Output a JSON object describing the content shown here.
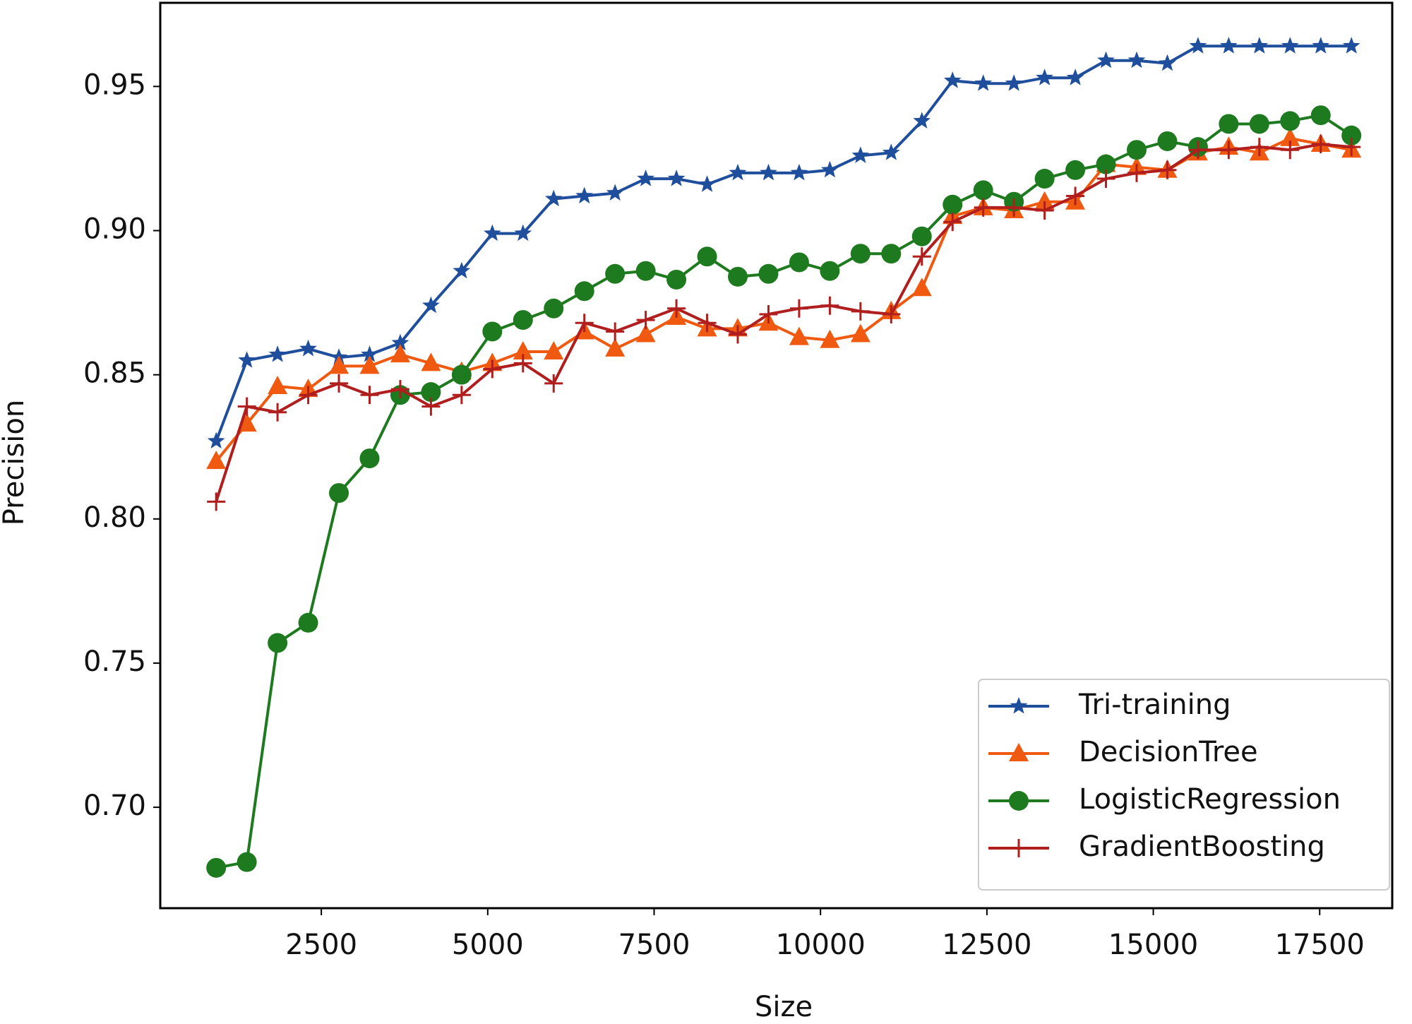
{
  "chart_data": {
    "type": "line",
    "x_label": "Size",
    "y_label": "Precision",
    "x": [
      920,
      1381,
      1842,
      2303,
      2764,
      3225,
      3686,
      4147,
      4608,
      5069,
      5530,
      5991,
      6452,
      6913,
      7374,
      7835,
      8296,
      8757,
      9218,
      9679,
      10140,
      10601,
      11062,
      11523,
      11984,
      12445,
      12906,
      13367,
      13828,
      14289,
      14750,
      15211,
      15672,
      16133,
      16594,
      17055,
      17516,
      17977
    ],
    "series": [
      {
        "name": "Tri-training",
        "color": "#1f4e9c",
        "marker": "star",
        "values": [
          0.827,
          0.855,
          0.857,
          0.859,
          0.856,
          0.857,
          0.861,
          0.874,
          0.886,
          0.899,
          0.899,
          0.911,
          0.912,
          0.913,
          0.918,
          0.918,
          0.916,
          0.92,
          0.92,
          0.92,
          0.921,
          0.926,
          0.927,
          0.938,
          0.952,
          0.951,
          0.951,
          0.953,
          0.953,
          0.959,
          0.959,
          0.958,
          0.964,
          0.964,
          0.964,
          0.964,
          0.964,
          0.964
        ]
      },
      {
        "name": "DecisionTree",
        "color": "#f05a10",
        "marker": "triangle",
        "values": [
          0.82,
          0.833,
          0.846,
          0.845,
          0.853,
          0.853,
          0.857,
          0.854,
          0.851,
          0.854,
          0.858,
          0.858,
          0.865,
          0.859,
          0.864,
          0.87,
          0.866,
          0.866,
          0.868,
          0.863,
          0.862,
          0.864,
          0.872,
          0.88,
          0.905,
          0.908,
          0.907,
          0.91,
          0.91,
          0.923,
          0.922,
          0.921,
          0.927,
          0.929,
          0.927,
          0.932,
          0.93,
          0.928
        ]
      },
      {
        "name": "LogisticRegression",
        "color": "#1e7a1e",
        "marker": "circle",
        "values": [
          0.679,
          0.681,
          0.757,
          0.764,
          0.809,
          0.821,
          0.843,
          0.844,
          0.85,
          0.865,
          0.869,
          0.873,
          0.879,
          0.885,
          0.886,
          0.883,
          0.891,
          0.884,
          0.885,
          0.889,
          0.886,
          0.892,
          0.892,
          0.898,
          0.909,
          0.914,
          0.91,
          0.918,
          0.921,
          0.923,
          0.928,
          0.931,
          0.929,
          0.937,
          0.937,
          0.938,
          0.94,
          0.933
        ]
      },
      {
        "name": "GradientBoosting",
        "color": "#b01e1e",
        "marker": "plus",
        "values": [
          0.806,
          0.839,
          0.837,
          0.843,
          0.847,
          0.843,
          0.845,
          0.839,
          0.843,
          0.852,
          0.854,
          0.847,
          0.868,
          0.865,
          0.869,
          0.873,
          0.868,
          0.864,
          0.871,
          0.873,
          0.874,
          0.872,
          0.871,
          0.891,
          0.903,
          0.908,
          0.908,
          0.907,
          0.912,
          0.918,
          0.92,
          0.921,
          0.928,
          0.928,
          0.929,
          0.928,
          0.93,
          0.929
        ]
      }
    ],
    "xlim": [
      80,
      18590
    ],
    "xticks": [
      2500,
      5000,
      7500,
      10000,
      12500,
      15000,
      17500
    ],
    "ylim": [
      0.665,
      0.979
    ],
    "yticks": [
      {
        "value": 0.7,
        "label": "0.70"
      },
      {
        "value": 0.75,
        "label": "0.75"
      },
      {
        "value": 0.8,
        "label": "0.80"
      },
      {
        "value": 0.85,
        "label": "0.85"
      },
      {
        "value": 0.9,
        "label": "0.90"
      },
      {
        "value": 0.95,
        "label": "0.95"
      }
    ],
    "legend": "lower right"
  }
}
